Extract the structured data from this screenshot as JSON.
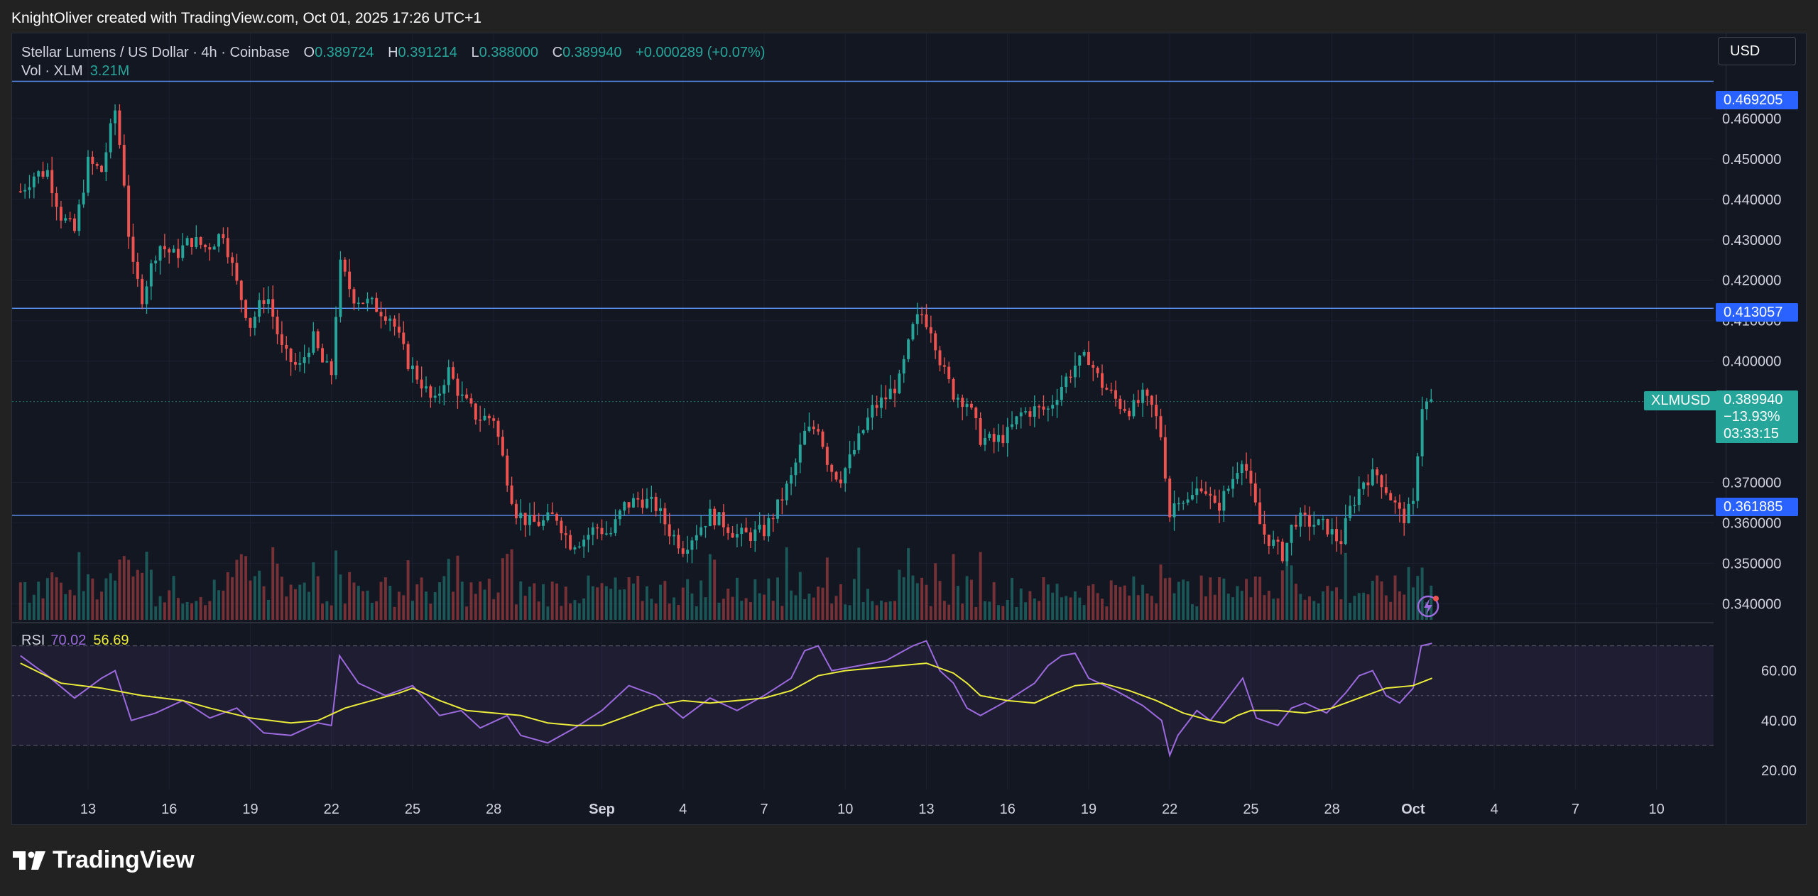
{
  "caption": "KnightOliver created with TradingView.com, Oct 01, 2025 17:26 UTC+1",
  "legend": {
    "symbol": "Stellar Lumens / US Dollar · 4h · Coinbase",
    "open_label": "O",
    "open": "0.389724",
    "high_label": "H",
    "high": "0.391214",
    "low_label": "L",
    "low": "0.388000",
    "close_label": "C",
    "close": "0.389940",
    "change": "+0.000289 (+0.07%)",
    "vol_label": "Vol · XLM",
    "vol": "3.21M",
    "rsi_label": "RSI",
    "rsi_value": "70.02",
    "rsi_ma_value": "56.69"
  },
  "currency": "USD",
  "price_tags": {
    "tag1": "0.469205",
    "tag2": "0.413057",
    "tag3": "0.361885"
  },
  "last_price": {
    "symbol": "XLMUSD",
    "price": "0.389940",
    "change": "−13.93%",
    "countdown": "03:33:15"
  },
  "branding": "TradingView",
  "colors": {
    "up": "#26a69a",
    "down": "#ef5350",
    "rsi": "#9c6ade",
    "rsi_ma": "#ecec3b",
    "hline": "#2962ff",
    "background": "#131722"
  },
  "chart_data": [
    {
      "type": "candlestick",
      "title": "Stellar Lumens / US Dollar · 4h · Coinbase",
      "timeframe": "4h",
      "y_axis_ticks": [
        "0.460000",
        "0.450000",
        "0.440000",
        "0.430000",
        "0.420000",
        "0.410000",
        "0.400000",
        "0.370000",
        "0.360000",
        "0.350000",
        "0.340000"
      ],
      "ylim": [
        0.3355,
        0.4735
      ],
      "x_axis_ticks": [
        "13",
        "16",
        "19",
        "22",
        "25",
        "28",
        "Sep",
        "4",
        "7",
        "10",
        "13",
        "16",
        "19",
        "22",
        "25",
        "28",
        "Oct",
        "4",
        "7",
        "10"
      ],
      "x_tick_days": [
        13,
        16,
        19,
        22,
        25,
        28,
        32,
        35,
        38,
        41,
        44,
        47,
        50,
        53,
        56,
        59,
        62,
        65,
        68,
        71
      ],
      "x_unit": "day index (Aug 1 = 1, Sep 1 = 32, Oct 1 = 62)",
      "horizontal_lines": [
        0.469205,
        0.413057,
        0.361885
      ],
      "close_points": [
        [
          10.5,
          0.442
        ],
        [
          11.0,
          0.446
        ],
        [
          11.5,
          0.447
        ],
        [
          12.0,
          0.436
        ],
        [
          12.5,
          0.432
        ],
        [
          13.0,
          0.449
        ],
        [
          13.5,
          0.447
        ],
        [
          14.0,
          0.462
        ],
        [
          14.3,
          0.447
        ],
        [
          14.6,
          0.424
        ],
        [
          15.0,
          0.416
        ],
        [
          15.6,
          0.429
        ],
        [
          16.2,
          0.426
        ],
        [
          16.8,
          0.43
        ],
        [
          17.4,
          0.428
        ],
        [
          18.0,
          0.432
        ],
        [
          18.5,
          0.419
        ],
        [
          19.0,
          0.409
        ],
        [
          19.6,
          0.417
        ],
        [
          20.2,
          0.402
        ],
        [
          20.8,
          0.398
        ],
        [
          21.3,
          0.406
        ],
        [
          21.7,
          0.399
        ],
        [
          22.0,
          0.397
        ],
        [
          22.3,
          0.424
        ],
        [
          22.8,
          0.416
        ],
        [
          23.5,
          0.414
        ],
        [
          24.2,
          0.411
        ],
        [
          24.8,
          0.4
        ],
        [
          25.3,
          0.395
        ],
        [
          25.8,
          0.389
        ],
        [
          26.3,
          0.398
        ],
        [
          26.8,
          0.391
        ],
        [
          27.4,
          0.386
        ],
        [
          28.0,
          0.386
        ],
        [
          28.4,
          0.374
        ],
        [
          28.8,
          0.363
        ],
        [
          29.3,
          0.36
        ],
        [
          29.8,
          0.36
        ],
        [
          30.3,
          0.362
        ],
        [
          30.8,
          0.355
        ],
        [
          31.3,
          0.356
        ],
        [
          31.8,
          0.359
        ],
        [
          32.3,
          0.357
        ],
        [
          32.8,
          0.364
        ],
        [
          33.4,
          0.366
        ],
        [
          34.0,
          0.364
        ],
        [
          34.5,
          0.358
        ],
        [
          35.0,
          0.354
        ],
        [
          35.5,
          0.358
        ],
        [
          36.0,
          0.362
        ],
        [
          36.5,
          0.36
        ],
        [
          37.0,
          0.357
        ],
        [
          37.5,
          0.357
        ],
        [
          38.0,
          0.358
        ],
        [
          38.5,
          0.364
        ],
        [
          39.0,
          0.371
        ],
        [
          39.5,
          0.382
        ],
        [
          40.0,
          0.384
        ],
        [
          40.4,
          0.374
        ],
        [
          40.8,
          0.371
        ],
        [
          41.2,
          0.376
        ],
        [
          41.6,
          0.382
        ],
        [
          42.0,
          0.388
        ],
        [
          42.5,
          0.391
        ],
        [
          43.0,
          0.395
        ],
        [
          43.5,
          0.408
        ],
        [
          43.8,
          0.412
        ],
        [
          44.2,
          0.408
        ],
        [
          44.6,
          0.398
        ],
        [
          45.0,
          0.392
        ],
        [
          45.5,
          0.39
        ],
        [
          46.0,
          0.381
        ],
        [
          46.5,
          0.38
        ],
        [
          47.0,
          0.382
        ],
        [
          47.5,
          0.387
        ],
        [
          48.0,
          0.388
        ],
        [
          48.5,
          0.388
        ],
        [
          49.0,
          0.394
        ],
        [
          49.5,
          0.399
        ],
        [
          50.0,
          0.401
        ],
        [
          50.4,
          0.395
        ],
        [
          50.8,
          0.392
        ],
        [
          51.2,
          0.389
        ],
        [
          51.6,
          0.388
        ],
        [
          52.0,
          0.391
        ],
        [
          52.4,
          0.388
        ],
        [
          52.7,
          0.381
        ],
        [
          53.0,
          0.362
        ],
        [
          53.3,
          0.367
        ],
        [
          53.7,
          0.365
        ],
        [
          54.2,
          0.37
        ],
        [
          54.7,
          0.363
        ],
        [
          55.2,
          0.369
        ],
        [
          55.7,
          0.377
        ],
        [
          56.0,
          0.368
        ],
        [
          56.4,
          0.358
        ],
        [
          56.8,
          0.355
        ],
        [
          57.2,
          0.352
        ],
        [
          57.6,
          0.361
        ],
        [
          58.2,
          0.36
        ],
        [
          58.8,
          0.359
        ],
        [
          59.3,
          0.355
        ],
        [
          59.7,
          0.364
        ],
        [
          60.2,
          0.371
        ],
        [
          60.7,
          0.372
        ],
        [
          61.2,
          0.366
        ],
        [
          61.6,
          0.361
        ],
        [
          62.0,
          0.364
        ],
        [
          62.3,
          0.389
        ],
        [
          62.7,
          0.39
        ]
      ]
    },
    {
      "type": "bar",
      "title": "Vol · XLM",
      "last_value": "3.21M"
    },
    {
      "type": "line",
      "title": "RSI",
      "y_axis_ticks": [
        "60.00",
        "40.00",
        "20.00"
      ],
      "ylim": [
        12,
        79
      ],
      "bands": [
        70,
        50,
        30
      ],
      "series": [
        {
          "name": "RSI",
          "color": "#9c6ade",
          "points": [
            [
              10.5,
              66
            ],
            [
              11.5,
              58
            ],
            [
              12.5,
              49
            ],
            [
              13.5,
              57
            ],
            [
              14.0,
              60
            ],
            [
              14.6,
              40
            ],
            [
              15.5,
              43
            ],
            [
              16.5,
              48
            ],
            [
              17.5,
              41
            ],
            [
              18.5,
              45
            ],
            [
              19.5,
              35
            ],
            [
              20.5,
              34
            ],
            [
              21.5,
              39
            ],
            [
              22.0,
              38
            ],
            [
              22.3,
              66
            ],
            [
              23.0,
              55
            ],
            [
              24.0,
              50
            ],
            [
              25.0,
              54
            ],
            [
              26.0,
              42
            ],
            [
              26.8,
              44
            ],
            [
              27.5,
              37
            ],
            [
              28.5,
              42
            ],
            [
              29.0,
              34
            ],
            [
              30.0,
              31
            ],
            [
              31.0,
              37
            ],
            [
              32.0,
              44
            ],
            [
              33.0,
              54
            ],
            [
              34.0,
              50
            ],
            [
              35.0,
              41
            ],
            [
              36.0,
              49
            ],
            [
              37.0,
              44
            ],
            [
              38.0,
              50
            ],
            [
              39.0,
              57
            ],
            [
              39.5,
              68
            ],
            [
              40.0,
              70
            ],
            [
              40.5,
              60
            ],
            [
              41.5,
              62
            ],
            [
              42.5,
              64
            ],
            [
              43.5,
              70
            ],
            [
              44.0,
              72
            ],
            [
              44.5,
              60
            ],
            [
              45.0,
              55
            ],
            [
              45.5,
              45
            ],
            [
              46.0,
              42
            ],
            [
              47.0,
              48
            ],
            [
              48.0,
              55
            ],
            [
              48.5,
              62
            ],
            [
              49.0,
              66
            ],
            [
              49.5,
              67
            ],
            [
              50.0,
              57
            ],
            [
              51.0,
              52
            ],
            [
              52.0,
              46
            ],
            [
              52.7,
              40
            ],
            [
              53.0,
              26
            ],
            [
              53.3,
              34
            ],
            [
              54.0,
              44
            ],
            [
              54.5,
              40
            ],
            [
              55.0,
              47
            ],
            [
              55.7,
              57
            ],
            [
              56.2,
              41
            ],
            [
              57.0,
              38
            ],
            [
              57.5,
              45
            ],
            [
              58.0,
              47
            ],
            [
              58.8,
              43
            ],
            [
              59.5,
              51
            ],
            [
              60.0,
              58
            ],
            [
              60.5,
              60
            ],
            [
              61.0,
              50
            ],
            [
              61.5,
              47
            ],
            [
              62.0,
              53
            ],
            [
              62.3,
              70
            ],
            [
              62.7,
              71
            ]
          ]
        },
        {
          "name": "RSI-based MA",
          "color": "#ecec3b",
          "points": [
            [
              10.5,
              63
            ],
            [
              12.0,
              55
            ],
            [
              13.5,
              53
            ],
            [
              15.0,
              50
            ],
            [
              16.5,
              48
            ],
            [
              17.5,
              45
            ],
            [
              19.0,
              41
            ],
            [
              20.5,
              39
            ],
            [
              21.5,
              40
            ],
            [
              22.5,
              45
            ],
            [
              23.5,
              48
            ],
            [
              24.5,
              51
            ],
            [
              25.0,
              53
            ],
            [
              26.0,
              48
            ],
            [
              27.0,
              44
            ],
            [
              28.0,
              43
            ],
            [
              29.0,
              42
            ],
            [
              30.0,
              39
            ],
            [
              31.0,
              38
            ],
            [
              32.0,
              38
            ],
            [
              33.0,
              42
            ],
            [
              34.0,
              46
            ],
            [
              35.0,
              48
            ],
            [
              36.0,
              47
            ],
            [
              37.0,
              48
            ],
            [
              38.0,
              49
            ],
            [
              39.0,
              52
            ],
            [
              40.0,
              58
            ],
            [
              41.0,
              60
            ],
            [
              42.0,
              61
            ],
            [
              43.0,
              62
            ],
            [
              44.0,
              63
            ],
            [
              45.0,
              59
            ],
            [
              45.5,
              55
            ],
            [
              46.0,
              50
            ],
            [
              47.0,
              48
            ],
            [
              48.0,
              47
            ],
            [
              48.8,
              51
            ],
            [
              49.5,
              54
            ],
            [
              50.5,
              55
            ],
            [
              51.5,
              52
            ],
            [
              52.5,
              48
            ],
            [
              53.5,
              43
            ],
            [
              54.5,
              40
            ],
            [
              55.0,
              39
            ],
            [
              55.5,
              42
            ],
            [
              56.0,
              44
            ],
            [
              57.0,
              44
            ],
            [
              58.0,
              43
            ],
            [
              59.0,
              45
            ],
            [
              60.0,
              49
            ],
            [
              61.0,
              53
            ],
            [
              62.0,
              54
            ],
            [
              62.7,
              57
            ]
          ]
        }
      ]
    }
  ]
}
